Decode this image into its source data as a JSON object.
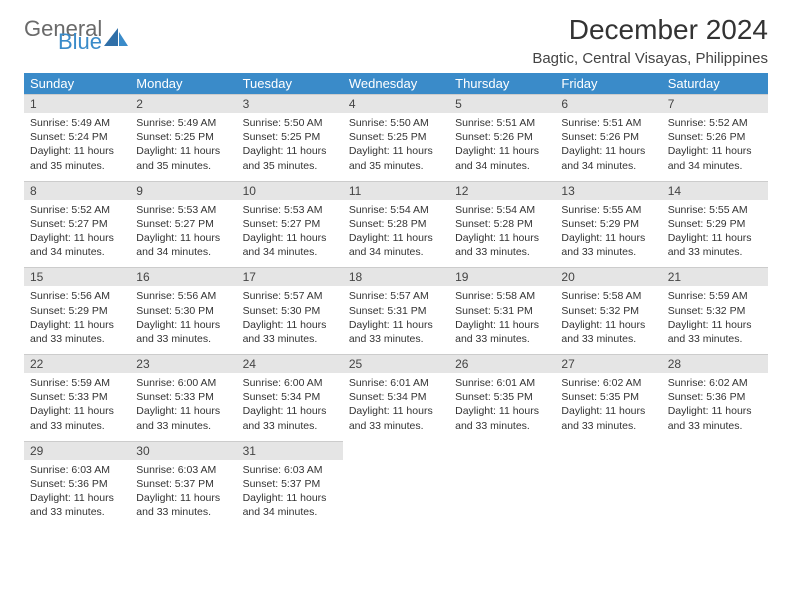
{
  "brand": {
    "part1": "General",
    "part2": "Blue"
  },
  "header": {
    "title": "December 2024",
    "subtitle": "Bagtic, Central Visayas, Philippines"
  },
  "colors": {
    "header_bg": "#3a8bc9",
    "header_fg": "#ffffff",
    "daynum_bg": "#e5e5e5",
    "border": "#cccccc",
    "title_color": "#333333",
    "logo_gray": "#6a6a6a",
    "logo_blue": "#3a8bc9"
  },
  "weekdays": [
    "Sunday",
    "Monday",
    "Tuesday",
    "Wednesday",
    "Thursday",
    "Friday",
    "Saturday"
  ],
  "weeks": [
    [
      {
        "n": "1",
        "sr": "5:49 AM",
        "ss": "5:24 PM",
        "dl": "11 hours and 35 minutes."
      },
      {
        "n": "2",
        "sr": "5:49 AM",
        "ss": "5:25 PM",
        "dl": "11 hours and 35 minutes."
      },
      {
        "n": "3",
        "sr": "5:50 AM",
        "ss": "5:25 PM",
        "dl": "11 hours and 35 minutes."
      },
      {
        "n": "4",
        "sr": "5:50 AM",
        "ss": "5:25 PM",
        "dl": "11 hours and 35 minutes."
      },
      {
        "n": "5",
        "sr": "5:51 AM",
        "ss": "5:26 PM",
        "dl": "11 hours and 34 minutes."
      },
      {
        "n": "6",
        "sr": "5:51 AM",
        "ss": "5:26 PM",
        "dl": "11 hours and 34 minutes."
      },
      {
        "n": "7",
        "sr": "5:52 AM",
        "ss": "5:26 PM",
        "dl": "11 hours and 34 minutes."
      }
    ],
    [
      {
        "n": "8",
        "sr": "5:52 AM",
        "ss": "5:27 PM",
        "dl": "11 hours and 34 minutes."
      },
      {
        "n": "9",
        "sr": "5:53 AM",
        "ss": "5:27 PM",
        "dl": "11 hours and 34 minutes."
      },
      {
        "n": "10",
        "sr": "5:53 AM",
        "ss": "5:27 PM",
        "dl": "11 hours and 34 minutes."
      },
      {
        "n": "11",
        "sr": "5:54 AM",
        "ss": "5:28 PM",
        "dl": "11 hours and 34 minutes."
      },
      {
        "n": "12",
        "sr": "5:54 AM",
        "ss": "5:28 PM",
        "dl": "11 hours and 33 minutes."
      },
      {
        "n": "13",
        "sr": "5:55 AM",
        "ss": "5:29 PM",
        "dl": "11 hours and 33 minutes."
      },
      {
        "n": "14",
        "sr": "5:55 AM",
        "ss": "5:29 PM",
        "dl": "11 hours and 33 minutes."
      }
    ],
    [
      {
        "n": "15",
        "sr": "5:56 AM",
        "ss": "5:29 PM",
        "dl": "11 hours and 33 minutes."
      },
      {
        "n": "16",
        "sr": "5:56 AM",
        "ss": "5:30 PM",
        "dl": "11 hours and 33 minutes."
      },
      {
        "n": "17",
        "sr": "5:57 AM",
        "ss": "5:30 PM",
        "dl": "11 hours and 33 minutes."
      },
      {
        "n": "18",
        "sr": "5:57 AM",
        "ss": "5:31 PM",
        "dl": "11 hours and 33 minutes."
      },
      {
        "n": "19",
        "sr": "5:58 AM",
        "ss": "5:31 PM",
        "dl": "11 hours and 33 minutes."
      },
      {
        "n": "20",
        "sr": "5:58 AM",
        "ss": "5:32 PM",
        "dl": "11 hours and 33 minutes."
      },
      {
        "n": "21",
        "sr": "5:59 AM",
        "ss": "5:32 PM",
        "dl": "11 hours and 33 minutes."
      }
    ],
    [
      {
        "n": "22",
        "sr": "5:59 AM",
        "ss": "5:33 PM",
        "dl": "11 hours and 33 minutes."
      },
      {
        "n": "23",
        "sr": "6:00 AM",
        "ss": "5:33 PM",
        "dl": "11 hours and 33 minutes."
      },
      {
        "n": "24",
        "sr": "6:00 AM",
        "ss": "5:34 PM",
        "dl": "11 hours and 33 minutes."
      },
      {
        "n": "25",
        "sr": "6:01 AM",
        "ss": "5:34 PM",
        "dl": "11 hours and 33 minutes."
      },
      {
        "n": "26",
        "sr": "6:01 AM",
        "ss": "5:35 PM",
        "dl": "11 hours and 33 minutes."
      },
      {
        "n": "27",
        "sr": "6:02 AM",
        "ss": "5:35 PM",
        "dl": "11 hours and 33 minutes."
      },
      {
        "n": "28",
        "sr": "6:02 AM",
        "ss": "5:36 PM",
        "dl": "11 hours and 33 minutes."
      }
    ],
    [
      {
        "n": "29",
        "sr": "6:03 AM",
        "ss": "5:36 PM",
        "dl": "11 hours and 33 minutes."
      },
      {
        "n": "30",
        "sr": "6:03 AM",
        "ss": "5:37 PM",
        "dl": "11 hours and 33 minutes."
      },
      {
        "n": "31",
        "sr": "6:03 AM",
        "ss": "5:37 PM",
        "dl": "11 hours and 34 minutes."
      },
      null,
      null,
      null,
      null
    ]
  ],
  "labels": {
    "sunrise": "Sunrise: ",
    "sunset": "Sunset: ",
    "daylight": "Daylight: "
  }
}
